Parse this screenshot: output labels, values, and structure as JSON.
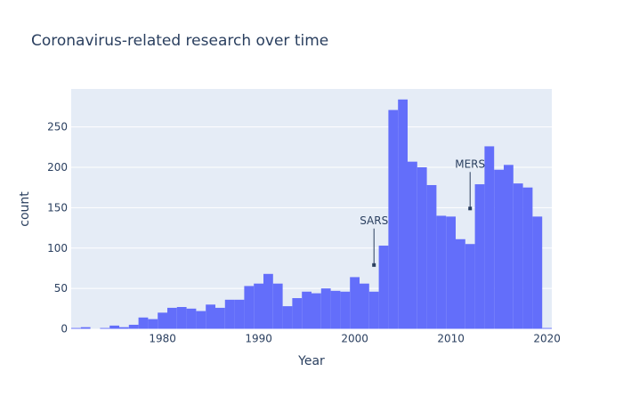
{
  "chart_data": {
    "type": "bar",
    "subtype": "histogram",
    "title": "Coronavirus-related research over time",
    "xlabel": "Year",
    "ylabel": "count",
    "xlim": [
      1970.5,
      2020.5
    ],
    "ylim": [
      0,
      297
    ],
    "bin_width": 1,
    "x_ticks": [
      "1980",
      "1990",
      "2000",
      "2010",
      "2020"
    ],
    "y_ticks": [
      "0",
      "50",
      "100",
      "150",
      "200",
      "250"
    ],
    "grid": true,
    "bar_color": "#636efa",
    "plot_bg": "#e5ecf6",
    "x": [
      1971,
      1972,
      1973,
      1974,
      1975,
      1976,
      1977,
      1978,
      1979,
      1980,
      1981,
      1982,
      1983,
      1984,
      1985,
      1986,
      1987,
      1988,
      1989,
      1990,
      1991,
      1992,
      1993,
      1994,
      1995,
      1996,
      1997,
      1998,
      1999,
      2000,
      2001,
      2002,
      2003,
      2004,
      2005,
      2006,
      2007,
      2008,
      2009,
      2010,
      2011,
      2012,
      2013,
      2014,
      2015,
      2016,
      2017,
      2018,
      2019,
      2020
    ],
    "values": [
      1,
      2,
      0,
      1,
      4,
      2,
      5,
      14,
      12,
      20,
      26,
      27,
      25,
      22,
      30,
      26,
      36,
      36,
      53,
      56,
      68,
      56,
      28,
      38,
      46,
      44,
      50,
      47,
      46,
      64,
      56,
      46,
      103,
      271,
      284,
      207,
      200,
      178,
      140,
      139,
      111,
      105,
      179,
      226,
      197,
      203,
      180,
      175,
      139,
      1
    ],
    "annotations": [
      {
        "text": "SARS",
        "x": 2002,
        "y": 79
      },
      {
        "text": "MERS",
        "x": 2012,
        "y": 149
      }
    ]
  }
}
